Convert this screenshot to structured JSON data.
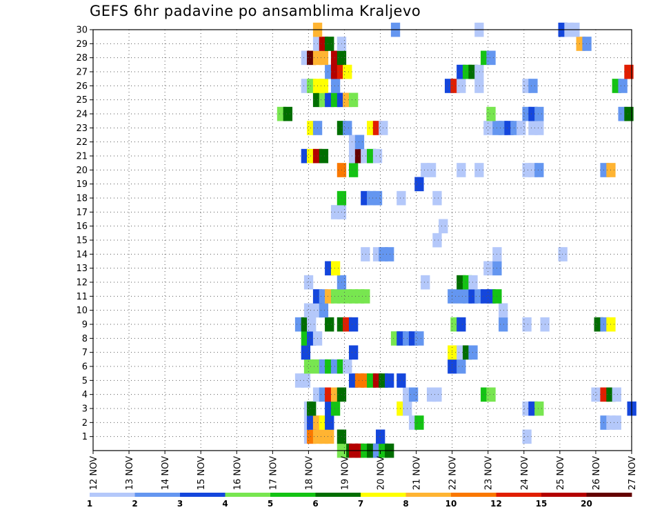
{
  "chart_data": {
    "type": "heatmap",
    "title": "GEFS 6hr padavine po ansamblima Kraljevo",
    "xlabel": "",
    "ylabel": "",
    "x_tick_labels": [
      "12 NOV",
      "13 NOV",
      "14 NOV",
      "15 NOV",
      "16 NOV",
      "17 NOV",
      "18 NOV",
      "19 NOV",
      "20 NOV",
      "21 NOV",
      "22 NOV",
      "23 NOV",
      "24 NOV",
      "25 NOV",
      "26 NOV",
      "27 NOV"
    ],
    "x_range_days": [
      12,
      27
    ],
    "y_tick_labels": [
      1,
      2,
      3,
      4,
      5,
      6,
      7,
      8,
      9,
      10,
      11,
      12,
      13,
      14,
      15,
      16,
      17,
      18,
      19,
      20,
      21,
      22,
      23,
      24,
      25,
      26,
      27,
      28,
      29,
      30
    ],
    "y_range": [
      0,
      30
    ],
    "grid": true,
    "legend_levels": [
      1,
      2,
      3,
      4,
      5,
      6,
      7,
      8,
      10,
      12,
      15,
      20
    ],
    "legend_colors": [
      "#b4c8fa",
      "#6496f0",
      "#1446dc",
      "#78e650",
      "#14c314",
      "#006e00",
      "#ffff00",
      "#ffb432",
      "#fa7800",
      "#e11e00",
      "#b40000",
      "#640000"
    ],
    "legend_placement": "bottom",
    "cells": [
      [
        0,
        19.08,
        6
      ],
      [
        0,
        19.25,
        11
      ],
      [
        0,
        19.42,
        11
      ],
      [
        0,
        19.58,
        5
      ],
      [
        0,
        19.75,
        6
      ],
      [
        0,
        19.92,
        2
      ],
      [
        0,
        20.08,
        5
      ],
      [
        0,
        20.25,
        6
      ],
      [
        0,
        18.92,
        4
      ],
      [
        1,
        18.0,
        1
      ],
      [
        1,
        18.08,
        9
      ],
      [
        1,
        18.25,
        8
      ],
      [
        1,
        18.42,
        8
      ],
      [
        1,
        18.58,
        8
      ],
      [
        1,
        18.92,
        6
      ],
      [
        1,
        20.0,
        3
      ],
      [
        1,
        24.08,
        1
      ],
      [
        2,
        18.0,
        1
      ],
      [
        2,
        18.08,
        3
      ],
      [
        2,
        18.25,
        8
      ],
      [
        2,
        18.42,
        7
      ],
      [
        2,
        18.58,
        3
      ],
      [
        2,
        20.92,
        1
      ],
      [
        2,
        21.08,
        5
      ],
      [
        2,
        26.25,
        2
      ],
      [
        2,
        26.42,
        1
      ],
      [
        2,
        26.58,
        1
      ],
      [
        3,
        18.0,
        1
      ],
      [
        3,
        18.08,
        6
      ],
      [
        3,
        18.58,
        3
      ],
      [
        3,
        18.75,
        5
      ],
      [
        3,
        20.58,
        7
      ],
      [
        3,
        20.75,
        1
      ],
      [
        3,
        24.08,
        1
      ],
      [
        3,
        24.25,
        3
      ],
      [
        3,
        24.42,
        4
      ],
      [
        3,
        27.0,
        3
      ],
      [
        4,
        18.25,
        1
      ],
      [
        4,
        18.42,
        2
      ],
      [
        4,
        18.58,
        10
      ],
      [
        4,
        18.75,
        8
      ],
      [
        4,
        18.92,
        6
      ],
      [
        4,
        20.75,
        1
      ],
      [
        4,
        20.92,
        2
      ],
      [
        4,
        21.42,
        1
      ],
      [
        4,
        21.58,
        1
      ],
      [
        4,
        22.92,
        5
      ],
      [
        4,
        23.08,
        4
      ],
      [
        4,
        26.0,
        1
      ],
      [
        4,
        26.25,
        10
      ],
      [
        4,
        26.42,
        6
      ],
      [
        4,
        26.58,
        1
      ],
      [
        5,
        17.75,
        1
      ],
      [
        5,
        17.92,
        1
      ],
      [
        5,
        19.25,
        3
      ],
      [
        5,
        19.42,
        9
      ],
      [
        5,
        19.58,
        9
      ],
      [
        5,
        19.75,
        5
      ],
      [
        5,
        19.92,
        11
      ],
      [
        5,
        20.08,
        6
      ],
      [
        5,
        20.25,
        3
      ],
      [
        5,
        20.58,
        3
      ],
      [
        6,
        18.0,
        4
      ],
      [
        6,
        18.25,
        4
      ],
      [
        6,
        18.42,
        2
      ],
      [
        6,
        18.58,
        5
      ],
      [
        6,
        18.75,
        2
      ],
      [
        6,
        18.92,
        5
      ],
      [
        6,
        19.08,
        1
      ],
      [
        6,
        22.0,
        3
      ],
      [
        6,
        22.25,
        2
      ],
      [
        7,
        17.92,
        3
      ],
      [
        7,
        19.25,
        3
      ],
      [
        7,
        22.0,
        7
      ],
      [
        7,
        22.25,
        1
      ],
      [
        7,
        22.42,
        6
      ],
      [
        7,
        22.58,
        2
      ],
      [
        8,
        17.92,
        5
      ],
      [
        8,
        18.08,
        3
      ],
      [
        8,
        18.25,
        1
      ],
      [
        8,
        20.42,
        4
      ],
      [
        8,
        20.58,
        3
      ],
      [
        8,
        20.75,
        2
      ],
      [
        8,
        20.92,
        3
      ],
      [
        8,
        21.08,
        2
      ],
      [
        9,
        17.75,
        2
      ],
      [
        9,
        17.92,
        6
      ],
      [
        9,
        18.08,
        1
      ],
      [
        9,
        18.58,
        6
      ],
      [
        9,
        18.92,
        6
      ],
      [
        9,
        19.08,
        10
      ],
      [
        9,
        19.25,
        3
      ],
      [
        9,
        22.08,
        4
      ],
      [
        9,
        22.25,
        3
      ],
      [
        9,
        23.42,
        2
      ],
      [
        9,
        24.08,
        1
      ],
      [
        9,
        24.58,
        1
      ],
      [
        9,
        26.08,
        6
      ],
      [
        9,
        26.25,
        2
      ],
      [
        9,
        26.42,
        7
      ],
      [
        10,
        18.0,
        1
      ],
      [
        10,
        18.25,
        1
      ],
      [
        10,
        18.42,
        2
      ],
      [
        10,
        23.42,
        1
      ],
      [
        11,
        18.25,
        3
      ],
      [
        11,
        18.42,
        2
      ],
      [
        11,
        18.58,
        8
      ],
      [
        11,
        18.75,
        4
      ],
      [
        11,
        18.92,
        4
      ],
      [
        11,
        19.08,
        4
      ],
      [
        11,
        19.25,
        4
      ],
      [
        11,
        19.42,
        4
      ],
      [
        11,
        19.58,
        4
      ],
      [
        11,
        22.0,
        2
      ],
      [
        11,
        22.25,
        2
      ],
      [
        11,
        22.42,
        2
      ],
      [
        11,
        22.58,
        3
      ],
      [
        11,
        22.75,
        2
      ],
      [
        11,
        22.92,
        3
      ],
      [
        11,
        23.08,
        3
      ],
      [
        11,
        23.25,
        5
      ],
      [
        12,
        18.0,
        1
      ],
      [
        12,
        18.92,
        2
      ],
      [
        12,
        21.25,
        1
      ],
      [
        12,
        22.25,
        6
      ],
      [
        12,
        22.42,
        5
      ],
      [
        12,
        22.58,
        1
      ],
      [
        13,
        18.58,
        3
      ],
      [
        13,
        18.75,
        7
      ],
      [
        13,
        23.0,
        1
      ],
      [
        13,
        23.25,
        2
      ],
      [
        14,
        19.58,
        1
      ],
      [
        14,
        19.92,
        1
      ],
      [
        14,
        20.08,
        2
      ],
      [
        14,
        20.25,
        2
      ],
      [
        14,
        23.25,
        1
      ],
      [
        14,
        25.08,
        1
      ],
      [
        15,
        21.58,
        1
      ],
      [
        16,
        21.75,
        1
      ],
      [
        17,
        18.75,
        1
      ],
      [
        17,
        18.92,
        1
      ],
      [
        18,
        18.92,
        5
      ],
      [
        18,
        19.58,
        3
      ],
      [
        18,
        19.75,
        2
      ],
      [
        18,
        19.92,
        2
      ],
      [
        18,
        20.58,
        1
      ],
      [
        18,
        21.58,
        1
      ],
      [
        19,
        21.08,
        3
      ],
      [
        20,
        18.92,
        9
      ],
      [
        20,
        19.25,
        5
      ],
      [
        20,
        21.25,
        1
      ],
      [
        20,
        21.42,
        1
      ],
      [
        20,
        22.25,
        1
      ],
      [
        20,
        22.75,
        1
      ],
      [
        20,
        24.08,
        1
      ],
      [
        20,
        24.25,
        1
      ],
      [
        20,
        24.42,
        2
      ],
      [
        20,
        26.25,
        2
      ],
      [
        20,
        26.42,
        8
      ],
      [
        21,
        17.92,
        3
      ],
      [
        21,
        18.08,
        7
      ],
      [
        21,
        18.25,
        11
      ],
      [
        21,
        18.42,
        6
      ],
      [
        21,
        19.25,
        1
      ],
      [
        21,
        19.42,
        12
      ],
      [
        21,
        19.58,
        1
      ],
      [
        21,
        19.75,
        5
      ],
      [
        21,
        19.92,
        1
      ],
      [
        22,
        19.25,
        1
      ],
      [
        22,
        19.42,
        2
      ],
      [
        23,
        18.08,
        7
      ],
      [
        23,
        18.25,
        2
      ],
      [
        23,
        18.92,
        6
      ],
      [
        23,
        19.08,
        2
      ],
      [
        23,
        19.75,
        7
      ],
      [
        23,
        19.92,
        10
      ],
      [
        23,
        20.08,
        1
      ],
      [
        23,
        23.0,
        1
      ],
      [
        23,
        23.25,
        2
      ],
      [
        23,
        23.42,
        2
      ],
      [
        23,
        23.58,
        3
      ],
      [
        23,
        23.75,
        2
      ],
      [
        23,
        23.92,
        1
      ],
      [
        23,
        24.25,
        1
      ],
      [
        23,
        24.42,
        1
      ],
      [
        24,
        17.25,
        4
      ],
      [
        24,
        17.42,
        6
      ],
      [
        24,
        23.08,
        4
      ],
      [
        24,
        24.08,
        2
      ],
      [
        24,
        24.25,
        3
      ],
      [
        24,
        24.42,
        2
      ],
      [
        24,
        26.75,
        2
      ],
      [
        24,
        26.92,
        6
      ],
      [
        25,
        18.25,
        6
      ],
      [
        25,
        18.42,
        4
      ],
      [
        25,
        18.58,
        3
      ],
      [
        25,
        18.75,
        5
      ],
      [
        25,
        18.92,
        3
      ],
      [
        25,
        19.08,
        8
      ],
      [
        25,
        19.25,
        4
      ],
      [
        26,
        17.92,
        1
      ],
      [
        26,
        18.08,
        4
      ],
      [
        26,
        18.25,
        7
      ],
      [
        26,
        18.42,
        7
      ],
      [
        26,
        18.75,
        2
      ],
      [
        26,
        21.92,
        3
      ],
      [
        26,
        22.08,
        10
      ],
      [
        26,
        22.25,
        1
      ],
      [
        26,
        22.75,
        1
      ],
      [
        26,
        24.08,
        1
      ],
      [
        26,
        24.25,
        2
      ],
      [
        26,
        26.58,
        5
      ],
      [
        26,
        26.75,
        2
      ],
      [
        27,
        18.58,
        2
      ],
      [
        27,
        18.75,
        11
      ],
      [
        27,
        18.92,
        10
      ],
      [
        27,
        19.08,
        7
      ],
      [
        27,
        22.25,
        3
      ],
      [
        27,
        22.42,
        5
      ],
      [
        27,
        22.58,
        6
      ],
      [
        27,
        22.75,
        1
      ],
      [
        27,
        26.92,
        10
      ],
      [
        28,
        17.92,
        1
      ],
      [
        28,
        18.08,
        12
      ],
      [
        28,
        18.25,
        8
      ],
      [
        28,
        18.42,
        8
      ],
      [
        28,
        18.75,
        11
      ],
      [
        28,
        18.92,
        6
      ],
      [
        28,
        22.92,
        5
      ],
      [
        28,
        23.08,
        2
      ],
      [
        29,
        18.25,
        1
      ],
      [
        29,
        18.42,
        11
      ],
      [
        29,
        18.58,
        6
      ],
      [
        29,
        18.92,
        1
      ],
      [
        29,
        25.58,
        8
      ],
      [
        29,
        25.75,
        2
      ],
      [
        30,
        18.25,
        8
      ],
      [
        30,
        20.42,
        2
      ],
      [
        30,
        22.75,
        1
      ],
      [
        30,
        25.08,
        3
      ],
      [
        30,
        25.25,
        1
      ],
      [
        30,
        25.42,
        1
      ]
    ]
  }
}
